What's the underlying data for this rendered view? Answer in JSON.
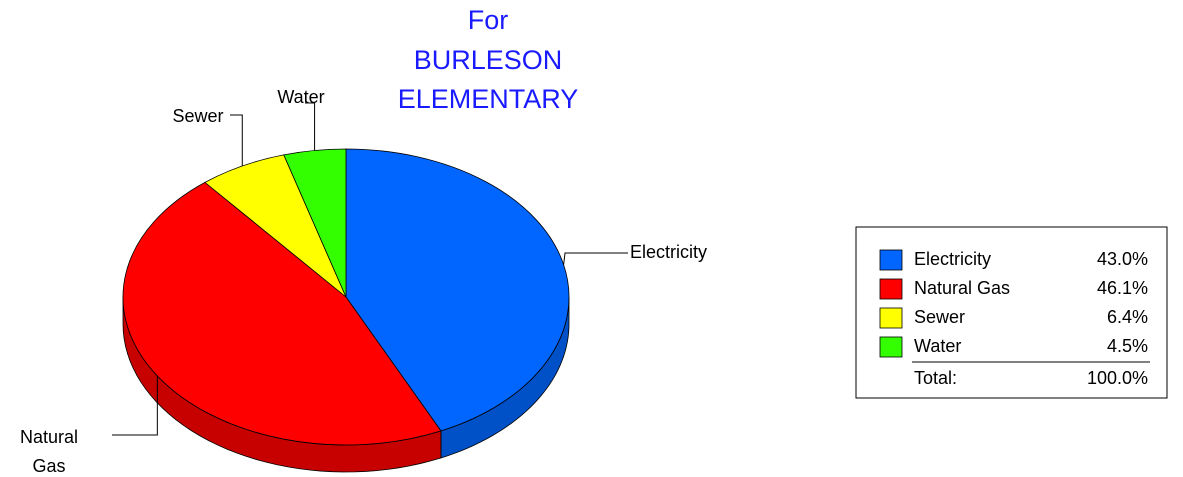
{
  "chart_data": {
    "type": "pie",
    "title": [
      "For",
      "BURLESON",
      "ELEMENTARY"
    ],
    "categories": [
      "Electricity",
      "Natural Gas",
      "Sewer",
      "Water"
    ],
    "values": [
      43.0,
      46.1,
      6.4,
      4.5
    ],
    "value_labels": [
      "43.0%",
      "46.1%",
      "6.4%",
      "4.5%"
    ],
    "colors": [
      "#0066ff",
      "#ff0000",
      "#ffff00",
      "#33ff00"
    ],
    "total": {
      "label": "Total:",
      "value": 100,
      "value_label": "100.0%"
    },
    "legend": "right"
  }
}
